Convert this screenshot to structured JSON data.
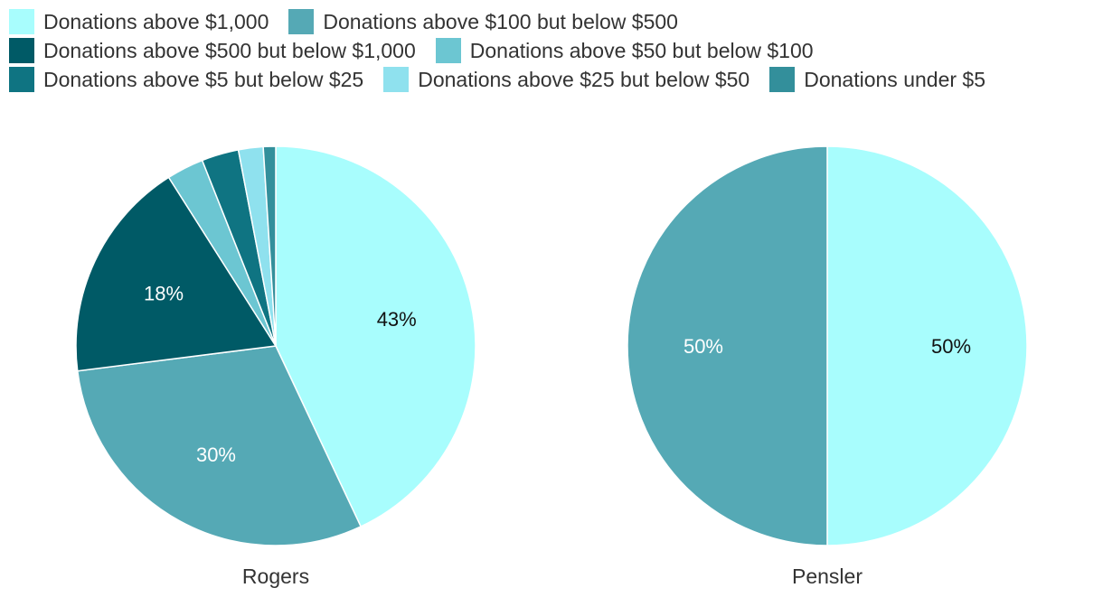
{
  "legend": [
    {
      "label": "Donations above $1,000",
      "color": "#a8fdfd"
    },
    {
      "label": "Donations above $100 but below $500",
      "color": "#55a9b5"
    },
    {
      "label": "Donations above $500 but below $1,000",
      "color": "#005a66"
    },
    {
      "label": "Donations above $50 but below $100",
      "color": "#6cc6d2"
    },
    {
      "label": "Donations above $5 but below $25",
      "color": "#0f7482"
    },
    {
      "label": "Donations above $25 but below $50",
      "color": "#8fe1ee"
    },
    {
      "label": "Donations under $5",
      "color": "#338f9b"
    }
  ],
  "chart_data": [
    {
      "type": "pie",
      "title": "Rogers",
      "slices": [
        {
          "label": "Donations above $1,000",
          "value": 43,
          "color": "#a8fdfd",
          "data_label": "43%"
        },
        {
          "label": "Donations above $100 but below $500",
          "value": 30,
          "color": "#55a9b5",
          "data_label": "30%"
        },
        {
          "label": "Donations above $500 but below $1,000",
          "value": 18,
          "color": "#005a66",
          "data_label": "18%"
        },
        {
          "label": "Donations above $50 but below $100",
          "value": 3,
          "color": "#6cc6d2",
          "data_label": ""
        },
        {
          "label": "Donations above $5 but below $25",
          "value": 3,
          "color": "#0f7482",
          "data_label": ""
        },
        {
          "label": "Donations above $25 but below $50",
          "value": 2,
          "color": "#8fe1ee",
          "data_label": ""
        },
        {
          "label": "Donations under $5",
          "value": 1,
          "color": "#338f9b",
          "data_label": ""
        }
      ]
    },
    {
      "type": "pie",
      "title": "Pensler",
      "slices": [
        {
          "label": "Donations above $1,000",
          "value": 50,
          "color": "#a8fdfd",
          "data_label": "50%"
        },
        {
          "label": "Donations above $100 but below $500",
          "value": 50,
          "color": "#55a9b5",
          "data_label": "50%"
        }
      ]
    }
  ]
}
